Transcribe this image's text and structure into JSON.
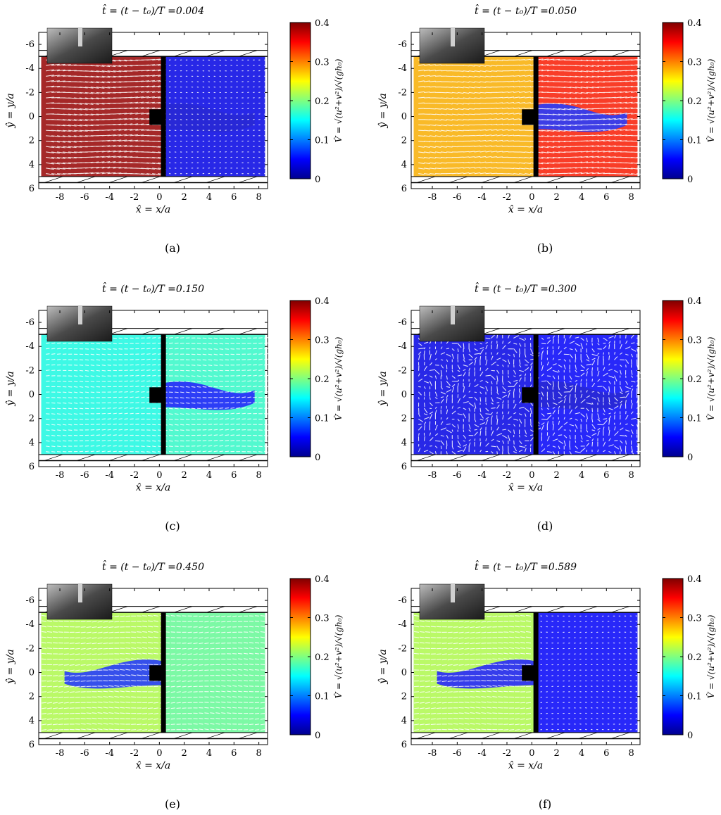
{
  "figure": {
    "xlabel": "x̂ = x/a",
    "ylabel": "ŷ = y/a",
    "colorbar_label": "V̂ = √(u²+v²)/√(gh₀)"
  },
  "chart_data": [
    {
      "type": "heatmap",
      "panel": "(a)",
      "title": "t̂ = (t − t₀)/T =0.004",
      "xlim": [
        -9.7,
        8.7
      ],
      "ylim": [
        -7,
        6
      ],
      "x_ticks": [
        -8,
        -6,
        -4,
        -2,
        0,
        2,
        4,
        6,
        8
      ],
      "y_ticks": [
        -6,
        -4,
        -2,
        0,
        2,
        4,
        6
      ],
      "colorbar": {
        "ticks": [
          0,
          0.1,
          0.2,
          0.3,
          0.4
        ],
        "range": [
          0,
          0.4
        ]
      },
      "field": {
        "left_value": 0.39,
        "right_value": 0.04,
        "wake_value": 0.03,
        "flow_direction": "right"
      },
      "flow_domain_x": [
        -9.5,
        8.5
      ],
      "flow_domain_y": [
        -5,
        5
      ],
      "gate_x": 0.3,
      "obstacle_x": [
        -0.8,
        0.3
      ],
      "obstacle_y": [
        -0.6,
        0.7
      ]
    },
    {
      "type": "heatmap",
      "panel": "(b)",
      "title": "t̂ = (t − t₀)/T =0.050",
      "xlim": [
        -9.7,
        8.7
      ],
      "ylim": [
        -7,
        6
      ],
      "x_ticks": [
        -8,
        -6,
        -4,
        -2,
        0,
        2,
        4,
        6,
        8
      ],
      "y_ticks": [
        -6,
        -4,
        -2,
        0,
        2,
        4,
        6
      ],
      "colorbar": {
        "ticks": [
          0,
          0.1,
          0.2,
          0.3,
          0.4
        ],
        "range": [
          0,
          0.4
        ]
      },
      "field": {
        "left_value": 0.28,
        "right_value": 0.34,
        "wake_value": 0.06,
        "flow_direction": "right"
      },
      "flow_domain_x": [
        -9.5,
        8.5
      ],
      "flow_domain_y": [
        -5,
        5
      ],
      "gate_x": 0.3,
      "obstacle_x": [
        -0.8,
        0.3
      ],
      "obstacle_y": [
        -0.6,
        0.7
      ]
    },
    {
      "type": "heatmap",
      "panel": "(c)",
      "title": "t̂ = (t − t₀)/T =0.150",
      "xlim": [
        -9.7,
        8.7
      ],
      "ylim": [
        -7,
        6
      ],
      "x_ticks": [
        -8,
        -6,
        -4,
        -2,
        0,
        2,
        4,
        6,
        8
      ],
      "y_ticks": [
        -6,
        -4,
        -2,
        0,
        2,
        4,
        6
      ],
      "colorbar": {
        "ticks": [
          0,
          0.1,
          0.2,
          0.3,
          0.4
        ],
        "range": [
          0,
          0.4
        ]
      },
      "field": {
        "left_value": 0.16,
        "right_value": 0.17,
        "wake_value": 0.05,
        "flow_direction": "right"
      },
      "flow_domain_x": [
        -9.5,
        8.5
      ],
      "flow_domain_y": [
        -5,
        5
      ],
      "gate_x": 0.3,
      "obstacle_x": [
        -0.8,
        0.3
      ],
      "obstacle_y": [
        -0.6,
        0.7
      ]
    },
    {
      "type": "heatmap",
      "panel": "(d)",
      "title": "t̂ = (t − t₀)/T =0.300",
      "xlim": [
        -9.7,
        8.7
      ],
      "ylim": [
        -7,
        6
      ],
      "x_ticks": [
        -8,
        -6,
        -4,
        -2,
        0,
        2,
        4,
        6,
        8
      ],
      "y_ticks": [
        -6,
        -4,
        -2,
        0,
        2,
        4,
        6
      ],
      "colorbar": {
        "ticks": [
          0,
          0.1,
          0.2,
          0.3,
          0.4
        ],
        "range": [
          0,
          0.4
        ]
      },
      "field": {
        "left_value": 0.04,
        "right_value": 0.05,
        "wake_value": 0.03,
        "flow_direction": "swirl"
      },
      "flow_domain_x": [
        -9.5,
        8.5
      ],
      "flow_domain_y": [
        -5,
        5
      ],
      "gate_x": 0.3,
      "obstacle_x": [
        -0.8,
        0.3
      ],
      "obstacle_y": [
        -0.6,
        0.7
      ]
    },
    {
      "type": "heatmap",
      "panel": "(e)",
      "title": "t̂ = (t − t₀)/T =0.450",
      "xlim": [
        -9.7,
        8.7
      ],
      "ylim": [
        -7,
        6
      ],
      "x_ticks": [
        -8,
        -6,
        -4,
        -2,
        0,
        2,
        4,
        6,
        8
      ],
      "y_ticks": [
        -6,
        -4,
        -2,
        0,
        2,
        4,
        6
      ],
      "colorbar": {
        "ticks": [
          0,
          0.1,
          0.2,
          0.3,
          0.4
        ],
        "range": [
          0,
          0.4
        ]
      },
      "field": {
        "left_value": 0.22,
        "right_value": 0.19,
        "wake_value": 0.06,
        "flow_direction": "left"
      },
      "flow_domain_x": [
        -9.5,
        8.5
      ],
      "flow_domain_y": [
        -5,
        5
      ],
      "gate_x": 0.3,
      "obstacle_x": [
        -0.8,
        0.3
      ],
      "obstacle_y": [
        -0.6,
        0.7
      ]
    },
    {
      "type": "heatmap",
      "panel": "(f)",
      "title": "t̂ = (t − t₀)/T =0.589",
      "xlim": [
        -9.7,
        8.7
      ],
      "ylim": [
        -7,
        6
      ],
      "x_ticks": [
        -8,
        -6,
        -4,
        -2,
        0,
        2,
        4,
        6,
        8
      ],
      "y_ticks": [
        -6,
        -4,
        -2,
        0,
        2,
        4,
        6
      ],
      "colorbar": {
        "ticks": [
          0,
          0.1,
          0.2,
          0.3,
          0.4
        ],
        "range": [
          0,
          0.4
        ]
      },
      "field": {
        "left_value": 0.22,
        "right_value": 0.05,
        "wake_value": 0.05,
        "flow_direction": "left"
      },
      "flow_domain_x": [
        -9.5,
        8.5
      ],
      "flow_domain_y": [
        -5,
        5
      ],
      "gate_x": 0.3,
      "obstacle_x": [
        -0.8,
        0.3
      ],
      "obstacle_y": [
        -0.6,
        0.7
      ]
    }
  ]
}
